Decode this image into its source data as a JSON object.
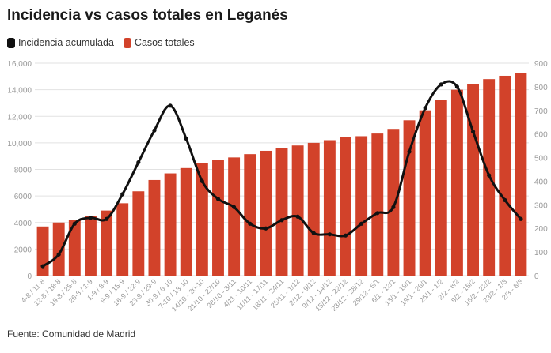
{
  "title": "Incidencia vs casos totales en Leganés",
  "source": "Fuente: Comunidad de Madrid",
  "colors": {
    "bars": "#d2422a",
    "line": "#111111",
    "grid": "#e2e2e2",
    "ticks": "#999999"
  },
  "chart_data": {
    "type": "bar",
    "combo": "bar+line",
    "grid": true,
    "legend_position": "top-left",
    "categories": [
      "4-8 / 11-8",
      "12-8 / 18-8",
      "19-8 / 25-8",
      "26-8 / 1-9",
      "1-9 / 8-9",
      "9-9 / 15-9",
      "16-9 / 22-9",
      "23-9 / 29-9",
      "30-9 / 6-10",
      "7-10 / 13-10",
      "14/10 - 20-10",
      "21/10 - 27/10",
      "28/10 - 3/11",
      "4/11 - 10/11",
      "11/11 - 17/11",
      "18/11 - 24/11",
      "25/11 - 1/12",
      "2/12 - 9/12",
      "9/12 - 14/12",
      "15/12 - 22/12",
      "23/12 - 28/12",
      "29/12 - 5/1",
      "6/1 - 12/1",
      "13/1 - 19/1",
      "19/1 - 26/1",
      "26/1 - 1/2",
      "2/2 - 8/2",
      "9/2 - 15/2",
      "16/2 - 22/2",
      "23/2 - 1/3",
      "2/3 - 8/3"
    ],
    "series": [
      {
        "name": "Casos totales",
        "type": "bar",
        "axis": "left",
        "values": [
          3700,
          4000,
          4200,
          4500,
          4900,
          5450,
          6350,
          7200,
          7700,
          8100,
          8450,
          8700,
          8900,
          9150,
          9400,
          9600,
          9800,
          10000,
          10200,
          10450,
          10500,
          10700,
          11050,
          11700,
          12450,
          13250,
          14000,
          14400,
          14800,
          15050,
          15250
        ]
      },
      {
        "name": "Incidencia acumulada",
        "type": "line",
        "axis": "right",
        "values": [
          40,
          90,
          220,
          245,
          240,
          345,
          480,
          615,
          720,
          580,
          400,
          325,
          290,
          220,
          200,
          235,
          250,
          180,
          175,
          170,
          220,
          265,
          290,
          525,
          710,
          810,
          800,
          610,
          425,
          320,
          240
        ]
      }
    ],
    "y_left": {
      "min": 0,
      "max": 16000,
      "ticks": [
        0,
        2000,
        4000,
        6000,
        8000,
        10000,
        12000,
        14000,
        16000
      ],
      "tick_labels": [
        "0",
        "2000",
        "4000",
        "6000",
        "8000",
        "10,000",
        "12,000",
        "14,000",
        "16,000"
      ]
    },
    "y_right": {
      "min": 0,
      "max": 900,
      "ticks": [
        0,
        100,
        200,
        300,
        400,
        500,
        600,
        700,
        800,
        900
      ],
      "tick_labels": [
        "0",
        "100",
        "200",
        "300",
        "400",
        "500",
        "600",
        "700",
        "800",
        "900"
      ]
    }
  }
}
